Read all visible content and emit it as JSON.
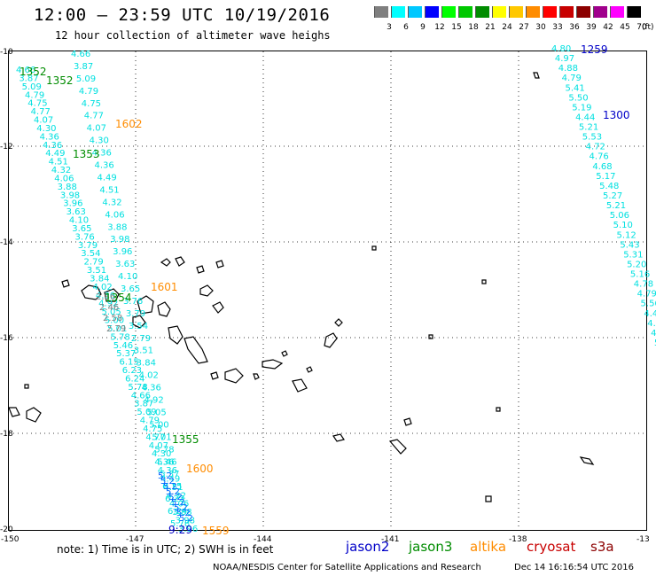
{
  "title": "12:00 — 23:59 UTC 10/19/2016",
  "subtitle": "12 hour collection of altimeter wave heighs",
  "legend": {
    "unit": "(ft)",
    "colors": [
      "#7f7f7f",
      "#00ffff",
      "#00c8ff",
      "#0000ff",
      "#00ff00",
      "#00c800",
      "#008c00",
      "#ffff00",
      "#ffc800",
      "#ff8c00",
      "#ff0000",
      "#c80000",
      "#8c0000",
      "#a0008c",
      "#ff00ff",
      "#000000"
    ],
    "labels": [
      "3",
      "6",
      "9",
      "12",
      "15",
      "18",
      "21",
      "24",
      "27",
      "30",
      "33",
      "36",
      "39",
      "42",
      "45",
      "70"
    ]
  },
  "axes": {
    "x_ticks": [
      "-150",
      "-147",
      "-144",
      "-141",
      "-138",
      "-13"
    ],
    "y_ticks": [
      "-10",
      "-12",
      "-14",
      "-16",
      "-18",
      "-20"
    ]
  },
  "track_labels": {
    "swh_west": [
      "4.66",
      "3.87",
      "5.09",
      "4.79",
      "4.75",
      "4.77",
      "4.07",
      "4.30",
      "4.36",
      "4.36",
      "4.49",
      "4.51",
      "4.32",
      "4.06",
      "3.88",
      "3.98",
      "3.96",
      "3.63",
      "4.10",
      "3.65",
      "3.76",
      "3.79",
      "3.54",
      "2.79",
      "3.51",
      "3.84",
      "4.02",
      "4.36",
      "4.92",
      "5.05",
      "5.00",
      "5.01",
      "5.78",
      "5.46",
      "5.37",
      "6.15",
      "6.23",
      "6.24",
      "5.78"
    ],
    "swh_west_gray": [
      "2.86",
      "2.46",
      "2.58",
      "2.79"
    ],
    "swh_east": [
      "4.80",
      "4.97",
      "4.88",
      "4.79",
      "5.41",
      "5.50",
      "5.19",
      "4.44",
      "5.21",
      "5.53",
      "4.72",
      "4.76",
      "4.68",
      "5.17",
      "5.48",
      "5.27",
      "5.21",
      "5.06",
      "5.10",
      "5.12",
      "5.43",
      "5.31",
      "5.20",
      "5.16",
      "4.78",
      "4.79",
      "5.56",
      "4.41",
      "4.6",
      "4.2",
      "5"
    ],
    "jason3_times": [
      "1352",
      "1352",
      "1353",
      "1354",
      "1355"
    ],
    "altika_times": [
      "1602",
      "1601",
      "1600",
      "1559"
    ],
    "jason2_times": [
      "1259",
      "1300",
      "9:29"
    ]
  },
  "footer": {
    "note": "note: 1) Time is in UTC; 2) SWH is in feet",
    "satellites": [
      {
        "name": "jason2",
        "color": "#0000c8"
      },
      {
        "name": "jason3",
        "color": "#008c00"
      },
      {
        "name": "altika",
        "color": "#ff8c00"
      },
      {
        "name": "cryosat",
        "color": "#c80000"
      },
      {
        "name": "s3a",
        "color": "#8c0000"
      }
    ],
    "credit": "NOAA/NESDIS Center for Satellite Applications and Research",
    "timestamp": "Dec 14 16:16:54 UTC 2016"
  }
}
